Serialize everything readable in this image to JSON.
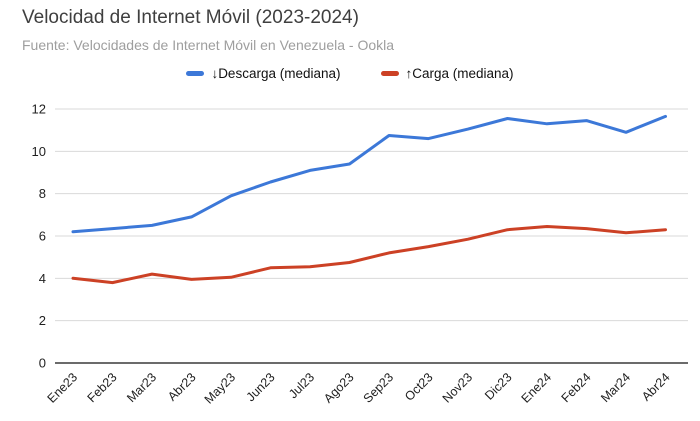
{
  "header": {
    "title": "Velocidad de Internet Móvil (2023-2024)",
    "subtitle": "Fuente: Velocidades de Internet Móvil en Venezuela - Ookla"
  },
  "colors": {
    "download_line": "#3c78d8",
    "upload_line": "#cc4125",
    "gridline": "#d9d9d9",
    "axis_line": "#6b6b6b",
    "tick_label": "#1f1f1f",
    "title": "#3f3f3f",
    "subtitle": "#9e9e9e"
  },
  "chart_data": {
    "type": "line",
    "title": "Velocidad de Internet Móvil (2023-2024)",
    "subtitle": "Fuente: Velocidades de Internet Móvil en Venezuela - Ookla",
    "legend_position": "top",
    "grid": true,
    "ylim": [
      0,
      12
    ],
    "yticks": [
      0,
      2,
      4,
      6,
      8,
      10,
      12
    ],
    "categories": [
      "Ene23",
      "Feb23",
      "Mar23",
      "Abr23",
      "May23",
      "Jun23",
      "Jul23",
      "Ago23",
      "Sep23",
      "Oct23",
      "Nov23",
      "Dic23",
      "Ene24",
      "Feb24",
      "Mar24",
      "Abr24"
    ],
    "series": [
      {
        "name": "↓Descarga (mediana)",
        "color": "#3c78d8",
        "values": [
          6.2,
          6.35,
          6.5,
          6.9,
          7.9,
          8.55,
          9.1,
          9.4,
          10.75,
          10.6,
          11.05,
          11.55,
          11.3,
          11.45,
          10.9,
          11.65
        ]
      },
      {
        "name": "↑Carga (mediana)",
        "color": "#cc4125",
        "values": [
          4.0,
          3.8,
          4.2,
          3.95,
          4.05,
          4.5,
          4.55,
          4.75,
          5.2,
          5.5,
          5.85,
          6.3,
          6.45,
          6.35,
          6.15,
          6.3
        ]
      }
    ]
  }
}
